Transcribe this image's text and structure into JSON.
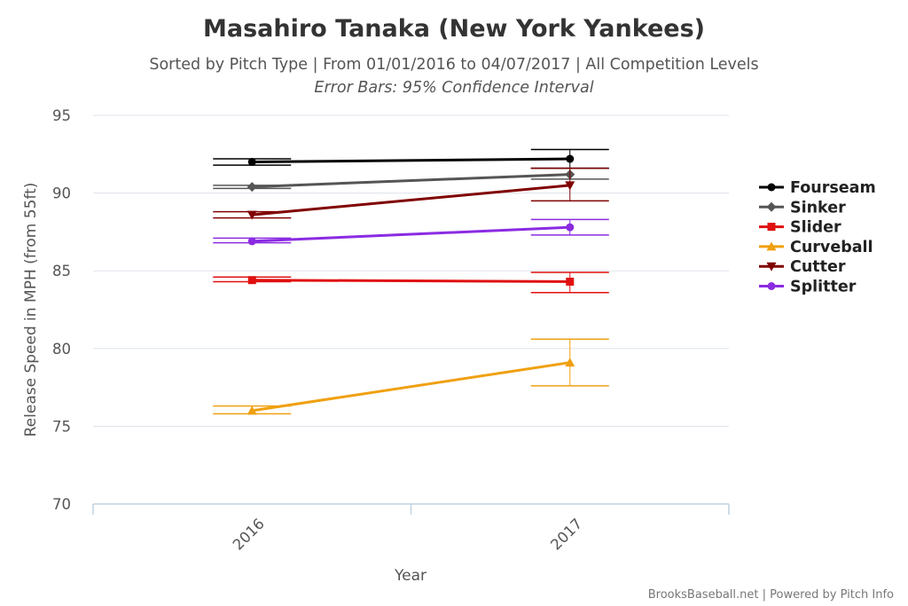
{
  "chart_data": {
    "type": "line",
    "title": "Masahiro Tanaka (New York Yankees)",
    "subtitle": "Sorted by Pitch Type | From 01/01/2016 to 04/07/2017 | All Competition Levels",
    "subtitle2": "Error Bars: 95% Confidence Interval",
    "xlabel": "Year",
    "ylabel": "Release Speed in MPH (from 55ft)",
    "categories": [
      "2016",
      "2017"
    ],
    "ylim": [
      70,
      95
    ],
    "yticks": [
      "70",
      "75",
      "80",
      "85",
      "90",
      "95"
    ],
    "grid": true,
    "legend_position": "right",
    "series": [
      {
        "name": "Fourseam",
        "color": "#000000",
        "marker": "circle",
        "values": [
          92.0,
          92.2
        ],
        "error": [
          [
            91.8,
            92.2
          ],
          [
            91.6,
            92.8
          ]
        ]
      },
      {
        "name": "Sinker",
        "color": "#555555",
        "marker": "diamond",
        "values": [
          90.4,
          91.2
        ],
        "error": [
          [
            90.3,
            90.5
          ],
          [
            90.9,
            91.6
          ]
        ]
      },
      {
        "name": "Slider",
        "color": "#e01010",
        "marker": "square",
        "values": [
          84.4,
          84.3
        ],
        "error": [
          [
            84.3,
            84.6
          ],
          [
            83.6,
            84.9
          ]
        ]
      },
      {
        "name": "Curveball",
        "color": "#f0a010",
        "marker": "triangle",
        "values": [
          76.0,
          79.1
        ],
        "error": [
          [
            75.8,
            76.3
          ],
          [
            77.6,
            80.6
          ]
        ]
      },
      {
        "name": "Cutter",
        "color": "#800000",
        "marker": "triangle-down",
        "values": [
          88.6,
          90.5
        ],
        "error": [
          [
            88.4,
            88.8
          ],
          [
            89.5,
            91.6
          ]
        ]
      },
      {
        "name": "Splitter",
        "color": "#8b2be2",
        "marker": "circle",
        "values": [
          86.9,
          87.8
        ],
        "error": [
          [
            86.8,
            87.1
          ],
          [
            87.3,
            88.3
          ]
        ]
      }
    ]
  },
  "credits": "BrooksBaseball.net | Powered by Pitch Info"
}
